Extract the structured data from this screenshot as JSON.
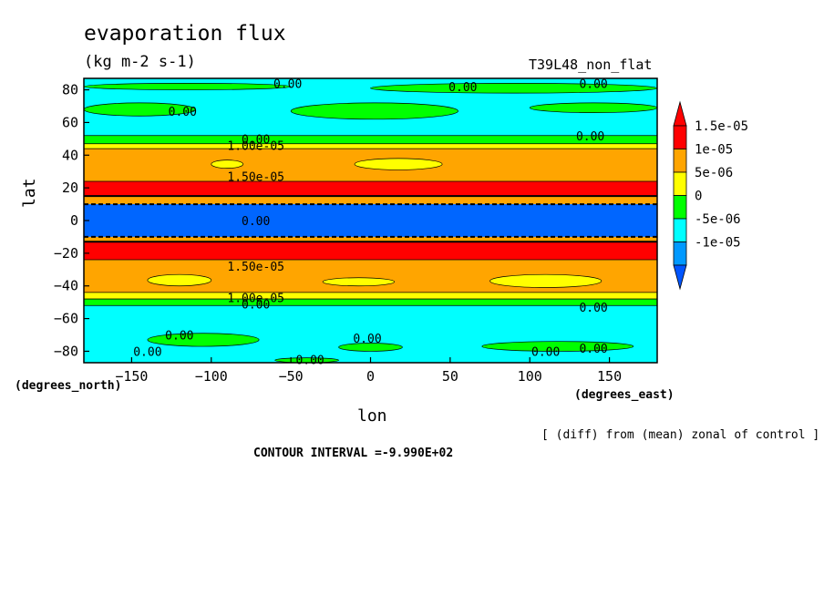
{
  "header": {
    "title": "evaporation flux",
    "units": "(kg m-2 s-1)",
    "run_label": "T39L48_non_flat"
  },
  "footer": {
    "diff_note": "[ (diff) from (mean) zonal of control ]",
    "contour_interval": "CONTOUR INTERVAL =-9.990E+02"
  },
  "chart_data": {
    "type": "heatmap",
    "xlabel": "lon",
    "ylabel": "lat",
    "x_unit_note": "(degrees_east)",
    "y_unit_note": "(degrees_north)",
    "xlim": [
      -180,
      180
    ],
    "ylim": [
      -87,
      87
    ],
    "x_ticks": [
      -150,
      -100,
      -50,
      0,
      50,
      100,
      150
    ],
    "x_tick_labels": [
      "−150",
      "−100",
      "−50",
      "0",
      "50",
      "100",
      "150"
    ],
    "y_ticks": [
      -80,
      -60,
      -40,
      -20,
      0,
      20,
      40,
      60,
      80
    ],
    "y_tick_labels": [
      "−80",
      "−60",
      "−40",
      "−20",
      "0",
      "20",
      "40",
      "60",
      "80"
    ],
    "legend": {
      "placement": "right",
      "levels": [
        {
          "label": "1.5e-05",
          "color": "#ff0000"
        },
        {
          "label": "1e-05",
          "color": "#ffa500"
        },
        {
          "label": "5e-06",
          "color": "#ffff00"
        },
        {
          "label": "0",
          "color": "#00ff00"
        },
        {
          "label": "-5e-06",
          "color": "#00ffff"
        },
        {
          "label": "-1e-05",
          "color": "#0099ff"
        }
      ],
      "extend_colors": {
        "top": "#ff0000",
        "bottom": "#0055ff"
      }
    },
    "zonal_bands": [
      {
        "lat_from": 87,
        "lat_to": 52,
        "color": "#00ffff"
      },
      {
        "lat_from": 52,
        "lat_to": 47,
        "color": "#00ff00"
      },
      {
        "lat_from": 47,
        "lat_to": 44,
        "color": "#ffff00"
      },
      {
        "lat_from": 44,
        "lat_to": 24,
        "color": "#ffa500"
      },
      {
        "lat_from": 24,
        "lat_to": 15,
        "color": "#ff0000"
      },
      {
        "lat_from": 15,
        "lat_to": 10,
        "color": "#ffa500"
      },
      {
        "lat_from": 10,
        "lat_to": -10,
        "color": "#0066ff"
      },
      {
        "lat_from": -10,
        "lat_to": -13,
        "color": "#ffa500"
      },
      {
        "lat_from": -13,
        "lat_to": -24,
        "color": "#ff0000"
      },
      {
        "lat_from": -24,
        "lat_to": -44,
        "color": "#ffa500"
      },
      {
        "lat_from": -44,
        "lat_to": -48,
        "color": "#ffff00"
      },
      {
        "lat_from": -48,
        "lat_to": -52,
        "color": "#00ff00"
      },
      {
        "lat_from": -52,
        "lat_to": -87,
        "color": "#00ffff"
      }
    ],
    "patches": [
      {
        "lon_from": -180,
        "lon_to": -50,
        "lat_from": 84,
        "lat_to": 80,
        "color": "#00ff00"
      },
      {
        "lon_from": -180,
        "lon_to": -110,
        "lat_from": 72,
        "lat_to": 64,
        "color": "#00ff00"
      },
      {
        "lon_from": -50,
        "lon_to": 55,
        "lat_from": 72,
        "lat_to": 62,
        "color": "#00ff00"
      },
      {
        "lon_from": 0,
        "lon_to": 180,
        "lat_from": 84,
        "lat_to": 78,
        "color": "#00ff00"
      },
      {
        "lon_from": 100,
        "lon_to": 180,
        "lat_from": 72,
        "lat_to": 66,
        "color": "#00ff00"
      },
      {
        "lon_from": -100,
        "lon_to": -80,
        "lat_from": 37,
        "lat_to": 32,
        "color": "#ffff00"
      },
      {
        "lon_from": -10,
        "lon_to": 45,
        "lat_from": 38,
        "lat_to": 31,
        "color": "#ffff00"
      },
      {
        "lon_from": -140,
        "lon_to": -100,
        "lat_from": -33,
        "lat_to": -40,
        "color": "#ffff00"
      },
      {
        "lon_from": -30,
        "lon_to": 15,
        "lat_from": -35,
        "lat_to": -40,
        "color": "#ffff00"
      },
      {
        "lon_from": 75,
        "lon_to": 145,
        "lat_from": -33,
        "lat_to": -41,
        "color": "#ffff00"
      },
      {
        "lon_from": -140,
        "lon_to": -70,
        "lat_from": -69,
        "lat_to": -77,
        "color": "#00ff00"
      },
      {
        "lon_from": -20,
        "lon_to": 20,
        "lat_from": -75,
        "lat_to": -80,
        "color": "#00ff00"
      },
      {
        "lon_from": 70,
        "lon_to": 165,
        "lat_from": -74,
        "lat_to": -80,
        "color": "#00ff00"
      },
      {
        "lon_from": -60,
        "lon_to": -20,
        "lat_from": -84,
        "lat_to": -87,
        "color": "#00ff00"
      }
    ],
    "contour_labels": [
      {
        "text": "0.00",
        "lon": -52,
        "lat": 84
      },
      {
        "text": "0.00",
        "lon": 58,
        "lat": 82
      },
      {
        "text": "0.00",
        "lon": 140,
        "lat": 84
      },
      {
        "text": "0.00",
        "lon": -118,
        "lat": 67
      },
      {
        "text": "0.00",
        "lon": 138,
        "lat": 52
      },
      {
        "text": "0.00",
        "lon": -72,
        "lat": 50
      },
      {
        "text": "1.00e-05",
        "lon": -72,
        "lat": 46
      },
      {
        "text": "1.50e-05",
        "lon": -72,
        "lat": 27
      },
      {
        "text": "0.00",
        "lon": -72,
        "lat": 0
      },
      {
        "text": "1.50e-05",
        "lon": -72,
        "lat": -28
      },
      {
        "text": "1.00e-05",
        "lon": -72,
        "lat": -47
      },
      {
        "text": "0.00",
        "lon": -72,
        "lat": -51
      },
      {
        "text": "0.00",
        "lon": 140,
        "lat": -53
      },
      {
        "text": "0.00",
        "lon": -120,
        "lat": -70
      },
      {
        "text": "0.00",
        "lon": -2,
        "lat": -72
      },
      {
        "text": "0.00",
        "lon": -140,
        "lat": -80
      },
      {
        "text": "0.00",
        "lon": 110,
        "lat": -80
      },
      {
        "text": "0.00",
        "lon": 140,
        "lat": -78
      },
      {
        "text": "0.00",
        "lon": -38,
        "lat": -85
      }
    ]
  }
}
